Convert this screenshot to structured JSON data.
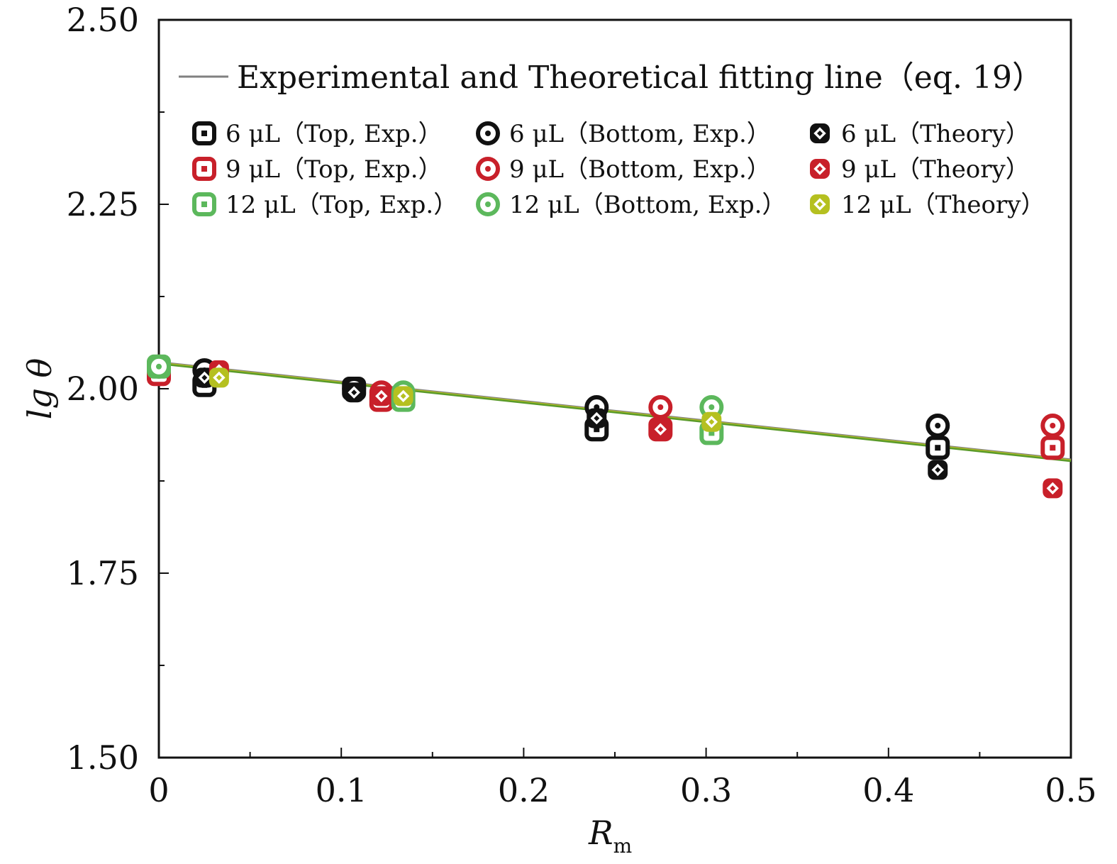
{
  "chart_data": {
    "type": "scatter",
    "xlabel": "R",
    "xlabel_sub": "m",
    "ylabel": "lg θ",
    "xlim": [
      0,
      0.5
    ],
    "ylim": [
      1.5,
      2.5
    ],
    "xticks": [
      "0",
      "0.1",
      "0.2",
      "0.3",
      "0.4",
      "0.5"
    ],
    "xtick_values": [
      0,
      0.1,
      0.2,
      0.3,
      0.4,
      0.5
    ],
    "yticks": [
      "1.50",
      "1.75",
      "2.00",
      "2.25",
      "2.50"
    ],
    "ytick_values": [
      1.5,
      1.75,
      2.0,
      2.25,
      2.5
    ],
    "fit_line": {
      "name": "Experimental and Theoretical fitting line（eq. 19）",
      "x": [
        0,
        0.5
      ],
      "y": [
        2.035,
        1.903
      ],
      "colors": [
        "#808080",
        "#b5c020",
        "#5a9a2a"
      ]
    },
    "series": [
      {
        "name": "6 μL（Top, Exp.）",
        "marker": "square",
        "color": "#111111",
        "x": [
          0.025,
          0.107,
          0.24,
          0.427
        ],
        "y": [
          2.005,
          2.0,
          1.945,
          1.92
        ]
      },
      {
        "name": "6 μL（Bottom, Exp.）",
        "marker": "circle",
        "color": "#111111",
        "x": [
          0.025,
          0.107,
          0.24,
          0.427
        ],
        "y": [
          2.025,
          2.0,
          1.975,
          1.95
        ]
      },
      {
        "name": "6 μL（Theory）",
        "marker": "diamond",
        "color": "#111111",
        "x": [
          0.025,
          0.107,
          0.24,
          0.427
        ],
        "y": [
          2.015,
          1.995,
          1.96,
          1.89
        ]
      },
      {
        "name": "9 μL（Top, Exp.）",
        "marker": "square",
        "color": "#c8202a",
        "x": [
          0.0,
          0.122,
          0.275,
          0.49
        ],
        "y": [
          2.02,
          1.985,
          1.945,
          1.92
        ]
      },
      {
        "name": "9 μL（Bottom, Exp.）",
        "marker": "circle",
        "color": "#c8202a",
        "x": [
          0.0,
          0.122,
          0.275,
          0.49
        ],
        "y": [
          2.03,
          1.995,
          1.975,
          1.95
        ]
      },
      {
        "name": "9 μL（Theory）",
        "marker": "diamond",
        "color": "#c8202a",
        "x": [
          0.033,
          0.122,
          0.275,
          0.49
        ],
        "y": [
          2.025,
          1.99,
          1.945,
          1.865
        ]
      },
      {
        "name": "12 μL（Top, Exp.）",
        "marker": "square",
        "color": "#5cb85c",
        "x": [
          0.0,
          0.134,
          0.303
        ],
        "y": [
          2.03,
          1.985,
          1.94
        ]
      },
      {
        "name": "12 μL（Bottom, Exp.）",
        "marker": "circle",
        "color": "#5cb85c",
        "x": [
          0.0,
          0.134,
          0.303
        ],
        "y": [
          2.03,
          1.995,
          1.975
        ]
      },
      {
        "name": "12 μL（Theory）",
        "marker": "diamond",
        "color": "#b5c020",
        "x": [
          0.033,
          0.134,
          0.303
        ],
        "y": [
          2.015,
          1.99,
          1.955
        ]
      }
    ]
  }
}
